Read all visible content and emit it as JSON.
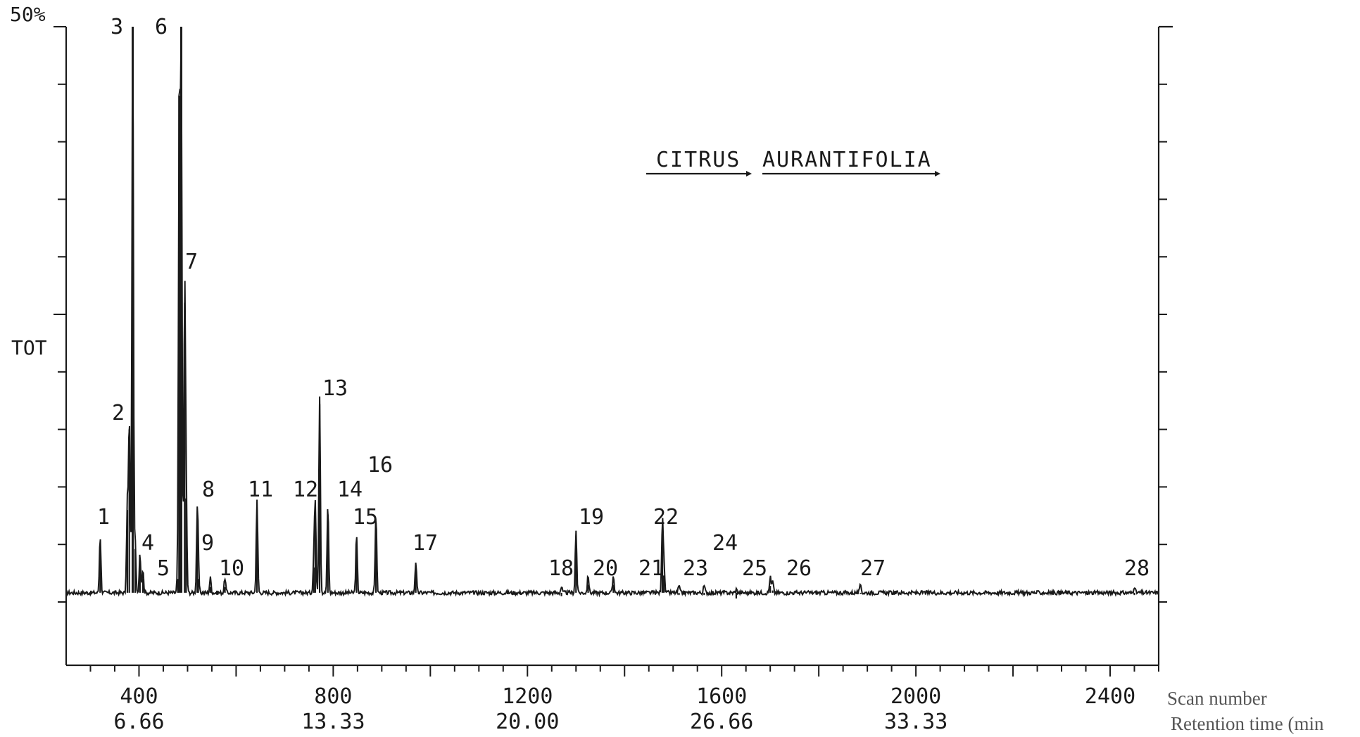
{
  "colors": {
    "ink": "#1a1a1a",
    "paper": "#ffffff",
    "caption": "#555555"
  },
  "chart_data": {
    "type": "line",
    "title_words": [
      "CITRUS",
      "AURANTIFOLIA"
    ],
    "ylabel": "TOT",
    "ymax_label": "50%",
    "y_range": [
      0,
      50
    ],
    "x_range": [
      250,
      2500
    ],
    "x_axis_name": "Scan number",
    "x2_axis_name": "Retention time (min",
    "x_ticks": [
      {
        "scan": 400,
        "scan_label": "400",
        "time_label": "6.66"
      },
      {
        "scan": 800,
        "scan_label": "800",
        "time_label": "13.33"
      },
      {
        "scan": 1200,
        "scan_label": "1200",
        "time_label": "20.00"
      },
      {
        "scan": 1600,
        "scan_label": "1600",
        "time_label": "26.66"
      },
      {
        "scan": 2000,
        "scan_label": "2000",
        "time_label": "33.33"
      },
      {
        "scan": 2400,
        "scan_label": "2400",
        "time_label": ""
      }
    ],
    "grid": false,
    "baseline_percent": 0.8,
    "peaks": [
      {
        "label": "1",
        "scan": 320,
        "height": 5.0
      },
      {
        "label": "2",
        "scan": 380,
        "height": 15.0
      },
      {
        "label": "",
        "scan": 376,
        "height": 8.0
      },
      {
        "label": "3",
        "scan": 387,
        "height": 50
      },
      {
        "label": "4",
        "scan": 392,
        "height": 4.6
      },
      {
        "label": "",
        "scan": 402,
        "height": 3.5
      },
      {
        "label": "5",
        "scan": 408,
        "height": 2.0
      },
      {
        "label": "",
        "scan": 480,
        "height": 2.0
      },
      {
        "label": "6",
        "scan": 487,
        "height": 50
      },
      {
        "label": "",
        "scan": 483,
        "height": 44.0
      },
      {
        "label": "7",
        "scan": 494,
        "height": 26.0
      },
      {
        "label": "8",
        "scan": 497,
        "height": 9.0
      },
      {
        "label": "9",
        "scan": 520,
        "height": 6.7
      },
      {
        "label": "",
        "scan": 522,
        "height": 2.0
      },
      {
        "label": "10",
        "scan": 547,
        "height": 1.3
      },
      {
        "label": "",
        "scan": 577,
        "height": 1.3
      },
      {
        "label": "11",
        "scan": 643,
        "height": 8.0
      },
      {
        "label": "",
        "scan": 760,
        "height": 3.0
      },
      {
        "label": "12",
        "scan": 763,
        "height": 7.6
      },
      {
        "label": "13",
        "scan": 772,
        "height": 17.2
      },
      {
        "label": "14",
        "scan": 789,
        "height": 7.6
      },
      {
        "label": "15",
        "scan": 848,
        "height": 5.0
      },
      {
        "label": "16",
        "scan": 888,
        "height": 6.9
      },
      {
        "label": "17",
        "scan": 970,
        "height": 2.7
      },
      {
        "label": "18",
        "scan": 1270,
        "height": 0.5
      },
      {
        "label": "19",
        "scan": 1300,
        "height": 5.4
      },
      {
        "label": "20",
        "scan": 1325,
        "height": 1.5
      },
      {
        "label": "21",
        "scan": 1377,
        "height": 1.5
      },
      {
        "label": "22",
        "scan": 1478,
        "height": 6.3
      },
      {
        "label": "",
        "scan": 1481,
        "height": 2.3
      },
      {
        "label": "23",
        "scan": 1512,
        "height": 0.6
      },
      {
        "label": "24",
        "scan": 1564,
        "height": 0.6
      },
      {
        "label": "25",
        "scan": 1630,
        "height": 0.3
      },
      {
        "label": "26",
        "scan": 1700,
        "height": 1.4
      },
      {
        "label": "",
        "scan": 1705,
        "height": 1.0
      },
      {
        "label": "27",
        "scan": 1886,
        "height": 0.7
      },
      {
        "label": "28",
        "scan": 2450,
        "height": 0.6
      }
    ]
  }
}
